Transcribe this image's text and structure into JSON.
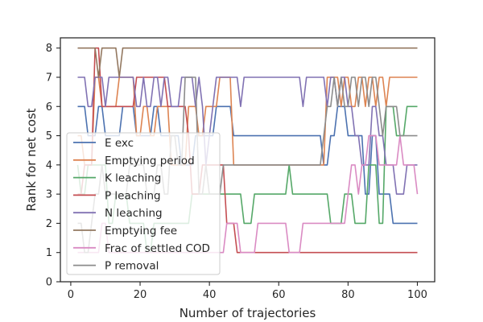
{
  "chart_data": {
    "type": "line",
    "title": "",
    "xlabel": "Number of trajectories",
    "ylabel": "Rank for net cost",
    "xlim": [
      -3,
      105
    ],
    "ylim": [
      0,
      8.35
    ],
    "xticks": [
      0,
      20,
      40,
      60,
      80,
      100
    ],
    "yticks": [
      0,
      1,
      2,
      3,
      4,
      5,
      6,
      7,
      8
    ],
    "grid": false,
    "legend_position": "lower-left",
    "series": [
      {
        "name": "E exc",
        "color": "#4c72b0",
        "points": [
          [
            2,
            6
          ],
          [
            4,
            6
          ],
          [
            5,
            5
          ],
          [
            7,
            5
          ],
          [
            8,
            6
          ],
          [
            9,
            6
          ],
          [
            10,
            5
          ],
          [
            14,
            5
          ],
          [
            15,
            6
          ],
          [
            18,
            6
          ],
          [
            19,
            5
          ],
          [
            23,
            5
          ],
          [
            24,
            6
          ],
          [
            25,
            6
          ],
          [
            26,
            5
          ],
          [
            31,
            5
          ],
          [
            32,
            4
          ],
          [
            35,
            4
          ],
          [
            36,
            5
          ],
          [
            41,
            5
          ],
          [
            42,
            6
          ],
          [
            46,
            6
          ],
          [
            47,
            5
          ],
          [
            72,
            5
          ],
          [
            73,
            4
          ],
          [
            74,
            4
          ],
          [
            75,
            5
          ],
          [
            76,
            5
          ],
          [
            77,
            6
          ],
          [
            79,
            6
          ],
          [
            80,
            5
          ],
          [
            84,
            5
          ],
          [
            85,
            3
          ],
          [
            86,
            3
          ],
          [
            87,
            5
          ],
          [
            88,
            5
          ],
          [
            89,
            3
          ],
          [
            92,
            3
          ],
          [
            93,
            2
          ],
          [
            100,
            2
          ]
        ]
      },
      {
        "name": "Emptying period",
        "color": "#dd8452",
        "points": [
          [
            2,
            5
          ],
          [
            3,
            5
          ],
          [
            4,
            4
          ],
          [
            6,
            4
          ],
          [
            7,
            7
          ],
          [
            8,
            7
          ],
          [
            9,
            6
          ],
          [
            13,
            6
          ],
          [
            14,
            7
          ],
          [
            18,
            7
          ],
          [
            19,
            5
          ],
          [
            20,
            5
          ],
          [
            21,
            6
          ],
          [
            22,
            6
          ],
          [
            23,
            5
          ],
          [
            24,
            5
          ],
          [
            25,
            6
          ],
          [
            28,
            6
          ],
          [
            29,
            4
          ],
          [
            33,
            4
          ],
          [
            34,
            6
          ],
          [
            36,
            6
          ],
          [
            37,
            5
          ],
          [
            38,
            5
          ],
          [
            39,
            6
          ],
          [
            42,
            6
          ],
          [
            43,
            7
          ],
          [
            46,
            7
          ],
          [
            47,
            4
          ],
          [
            73,
            4
          ],
          [
            74,
            7
          ],
          [
            77,
            7
          ],
          [
            78,
            6
          ],
          [
            79,
            7
          ],
          [
            80,
            7
          ],
          [
            81,
            6
          ],
          [
            82,
            6
          ],
          [
            83,
            7
          ],
          [
            84,
            7
          ],
          [
            85,
            6
          ],
          [
            86,
            7
          ],
          [
            87,
            7
          ],
          [
            88,
            6
          ],
          [
            89,
            7
          ],
          [
            90,
            7
          ],
          [
            91,
            6
          ],
          [
            92,
            7
          ],
          [
            100,
            7
          ]
        ]
      },
      {
        "name": "K leaching",
        "color": "#55a868",
        "points": [
          [
            2,
            4
          ],
          [
            3,
            3
          ],
          [
            4,
            3
          ],
          [
            5,
            4
          ],
          [
            10,
            4
          ],
          [
            11,
            2
          ],
          [
            12,
            2
          ],
          [
            13,
            3
          ],
          [
            16,
            3
          ],
          [
            17,
            2
          ],
          [
            21,
            2
          ],
          [
            22,
            1
          ],
          [
            23,
            1
          ],
          [
            24,
            2
          ],
          [
            34,
            2
          ],
          [
            35,
            3
          ],
          [
            49,
            3
          ],
          [
            50,
            2
          ],
          [
            52,
            2
          ],
          [
            53,
            3
          ],
          [
            60,
            3
          ],
          [
            61,
            3
          ],
          [
            62,
            3
          ],
          [
            63,
            4
          ],
          [
            64,
            3
          ],
          [
            74,
            3
          ],
          [
            75,
            2
          ],
          [
            78,
            2
          ],
          [
            79,
            3
          ],
          [
            81,
            3
          ],
          [
            82,
            2
          ],
          [
            85,
            2
          ],
          [
            86,
            4
          ],
          [
            88,
            4
          ],
          [
            89,
            2
          ],
          [
            90,
            2
          ],
          [
            91,
            6
          ],
          [
            93,
            6
          ],
          [
            94,
            5
          ],
          [
            96,
            5
          ],
          [
            97,
            6
          ],
          [
            100,
            6
          ]
        ]
      },
      {
        "name": "P leaching",
        "color": "#c44e52",
        "points": [
          [
            2,
            3
          ],
          [
            3,
            3
          ],
          [
            4,
            4
          ],
          [
            6,
            4
          ],
          [
            7,
            8
          ],
          [
            8,
            8
          ],
          [
            9,
            6
          ],
          [
            18,
            6
          ],
          [
            19,
            7
          ],
          [
            27,
            7
          ],
          [
            28,
            6
          ],
          [
            33,
            6
          ],
          [
            34,
            5
          ],
          [
            35,
            3
          ],
          [
            37,
            3
          ],
          [
            38,
            4
          ],
          [
            44,
            4
          ],
          [
            45,
            2
          ],
          [
            47,
            2
          ],
          [
            48,
            1
          ],
          [
            100,
            1
          ]
        ]
      },
      {
        "name": "N leaching",
        "color": "#8172b3",
        "points": [
          [
            2,
            7
          ],
          [
            4,
            7
          ],
          [
            5,
            6
          ],
          [
            6,
            6
          ],
          [
            7,
            7
          ],
          [
            9,
            7
          ],
          [
            10,
            6
          ],
          [
            11,
            7
          ],
          [
            18,
            7
          ],
          [
            19,
            6
          ],
          [
            20,
            6
          ],
          [
            21,
            7
          ],
          [
            22,
            6
          ],
          [
            23,
            6
          ],
          [
            24,
            7
          ],
          [
            25,
            7
          ],
          [
            26,
            6
          ],
          [
            27,
            7
          ],
          [
            28,
            7
          ],
          [
            29,
            6
          ],
          [
            31,
            6
          ],
          [
            32,
            7
          ],
          [
            35,
            7
          ],
          [
            36,
            6
          ],
          [
            37,
            7
          ],
          [
            38,
            6
          ],
          [
            39,
            4
          ],
          [
            40,
            5
          ],
          [
            41,
            6
          ],
          [
            42,
            7
          ],
          [
            48,
            7
          ],
          [
            49,
            6
          ],
          [
            50,
            7
          ],
          [
            66,
            7
          ],
          [
            67,
            6
          ],
          [
            68,
            7
          ],
          [
            73,
            7
          ],
          [
            74,
            6
          ],
          [
            75,
            7
          ],
          [
            76,
            7
          ],
          [
            77,
            6
          ],
          [
            78,
            7
          ],
          [
            79,
            7
          ],
          [
            80,
            6
          ],
          [
            81,
            6
          ],
          [
            82,
            5
          ],
          [
            83,
            5
          ],
          [
            84,
            4
          ],
          [
            86,
            4
          ],
          [
            87,
            6
          ],
          [
            88,
            6
          ],
          [
            89,
            5
          ],
          [
            90,
            5
          ],
          [
            91,
            4
          ],
          [
            93,
            4
          ],
          [
            94,
            3
          ],
          [
            96,
            3
          ],
          [
            97,
            4
          ],
          [
            100,
            4
          ]
        ]
      },
      {
        "name": "Emptying fee",
        "color": "#937860",
        "points": [
          [
            2,
            8
          ],
          [
            7,
            8
          ],
          [
            8,
            7
          ],
          [
            9,
            8
          ],
          [
            13,
            8
          ],
          [
            14,
            7
          ],
          [
            15,
            8
          ],
          [
            100,
            8
          ]
        ]
      },
      {
        "name": "Frac of settled COD",
        "color": "#da8bc3",
        "points": [
          [
            2,
            1
          ],
          [
            8,
            1
          ],
          [
            9,
            2
          ],
          [
            10,
            2
          ],
          [
            11,
            1
          ],
          [
            44,
            1
          ],
          [
            45,
            2
          ],
          [
            48,
            2
          ],
          [
            49,
            1
          ],
          [
            53,
            1
          ],
          [
            54,
            2
          ],
          [
            62,
            2
          ],
          [
            63,
            1
          ],
          [
            66,
            1
          ],
          [
            67,
            2
          ],
          [
            79,
            2
          ],
          [
            80,
            3
          ],
          [
            81,
            4
          ],
          [
            82,
            4
          ],
          [
            83,
            3
          ],
          [
            84,
            4
          ],
          [
            85,
            4
          ],
          [
            86,
            5
          ],
          [
            88,
            5
          ],
          [
            89,
            4
          ],
          [
            94,
            4
          ],
          [
            95,
            5
          ],
          [
            96,
            4
          ],
          [
            99,
            4
          ],
          [
            100,
            3
          ]
        ]
      },
      {
        "name": "P removal",
        "color": "#8c8c8c",
        "points": [
          [
            2,
            2
          ],
          [
            3,
            2
          ],
          [
            4,
            1
          ],
          [
            5,
            1
          ],
          [
            6,
            2
          ],
          [
            7,
            3
          ],
          [
            8,
            3
          ],
          [
            9,
            4
          ],
          [
            10,
            3
          ],
          [
            16,
            3
          ],
          [
            17,
            4
          ],
          [
            21,
            4
          ],
          [
            22,
            3
          ],
          [
            24,
            3
          ],
          [
            25,
            4
          ],
          [
            26,
            4
          ],
          [
            27,
            3
          ],
          [
            28,
            3
          ],
          [
            29,
            5
          ],
          [
            30,
            5
          ],
          [
            31,
            4
          ],
          [
            32,
            4
          ],
          [
            33,
            7
          ],
          [
            36,
            7
          ],
          [
            37,
            3
          ],
          [
            38,
            3
          ],
          [
            39,
            4
          ],
          [
            40,
            3
          ],
          [
            43,
            3
          ],
          [
            44,
            4
          ],
          [
            49,
            4
          ],
          [
            50,
            4
          ],
          [
            51,
            4
          ],
          [
            52,
            4
          ],
          [
            53,
            4
          ],
          [
            60,
            4
          ],
          [
            61,
            4
          ],
          [
            62,
            4
          ],
          [
            63,
            4
          ],
          [
            64,
            4
          ],
          [
            65,
            4
          ],
          [
            66,
            4
          ],
          [
            67,
            4
          ],
          [
            68,
            4
          ],
          [
            69,
            4
          ],
          [
            70,
            4
          ],
          [
            71,
            4
          ],
          [
            72,
            4
          ],
          [
            73,
            5
          ],
          [
            74,
            6
          ],
          [
            75,
            6
          ],
          [
            76,
            7
          ],
          [
            77,
            6
          ],
          [
            78,
            7
          ],
          [
            79,
            6
          ],
          [
            80,
            6
          ],
          [
            81,
            7
          ],
          [
            82,
            7
          ],
          [
            83,
            6
          ],
          [
            84,
            7
          ],
          [
            85,
            7
          ],
          [
            86,
            6
          ],
          [
            87,
            7
          ],
          [
            88,
            7
          ],
          [
            89,
            6
          ],
          [
            90,
            5
          ],
          [
            91,
            6
          ],
          [
            93,
            6
          ],
          [
            94,
            6
          ],
          [
            95,
            5
          ],
          [
            100,
            5
          ]
        ]
      }
    ]
  }
}
